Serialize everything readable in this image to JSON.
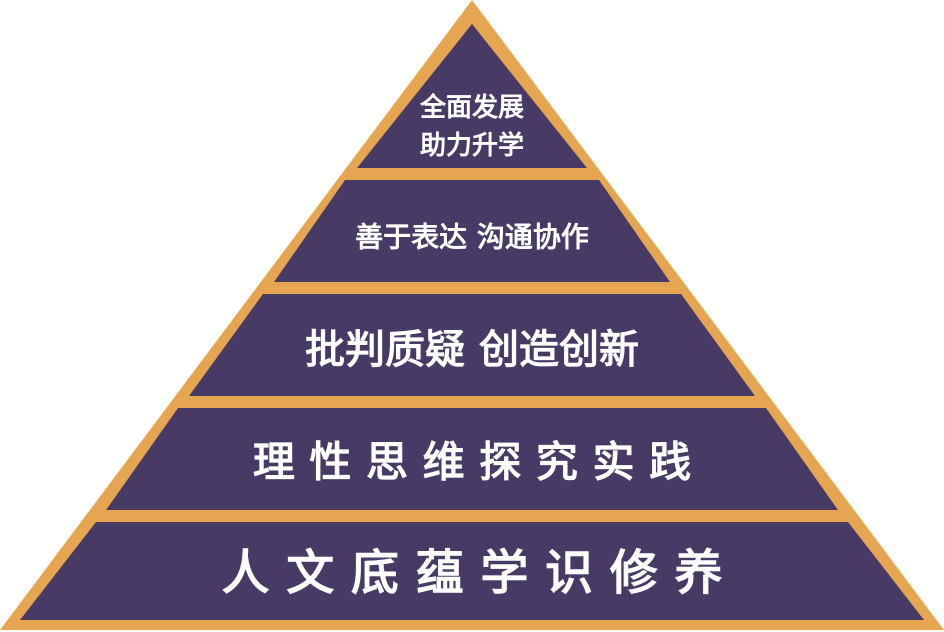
{
  "diagram": {
    "type": "pyramid",
    "colors": {
      "border": "#e6a550",
      "fill": "#473b66",
      "text": "#ffffff"
    },
    "tiers": [
      {
        "level": 5,
        "lines": [
          "全面发展",
          "助力升学"
        ]
      },
      {
        "level": 4,
        "lines": [
          "善于表达 沟通协作"
        ]
      },
      {
        "level": 3,
        "lines": [
          "批判质疑  创造创新"
        ]
      },
      {
        "level": 2,
        "lines": [
          "理 性 思 维   探 究 实 践"
        ]
      },
      {
        "level": 1,
        "lines": [
          "人 文 底 蕴    学 识 修 养"
        ]
      }
    ]
  }
}
